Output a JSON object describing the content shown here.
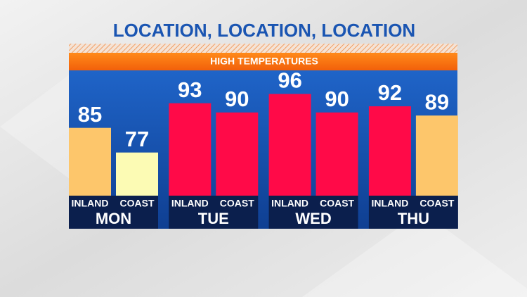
{
  "chart_data": {
    "type": "bar",
    "title": "LOCATION, LOCATION, LOCATION",
    "subtitle": "HIGH TEMPERATURES",
    "categories": [
      "MON",
      "TUE",
      "WED",
      "THU"
    ],
    "series": [
      {
        "name": "INLAND",
        "values": [
          85,
          93,
          96,
          92
        ],
        "colors": [
          "#fdc66b",
          "#ff0a48",
          "#ff0a48",
          "#ff0a48"
        ]
      },
      {
        "name": "COAST",
        "values": [
          77,
          90,
          90,
          89
        ],
        "colors": [
          "#fcfbb4",
          "#ff0a48",
          "#ff0a48",
          "#fdc66b"
        ]
      }
    ],
    "ylim": [
      63,
      100
    ]
  }
}
